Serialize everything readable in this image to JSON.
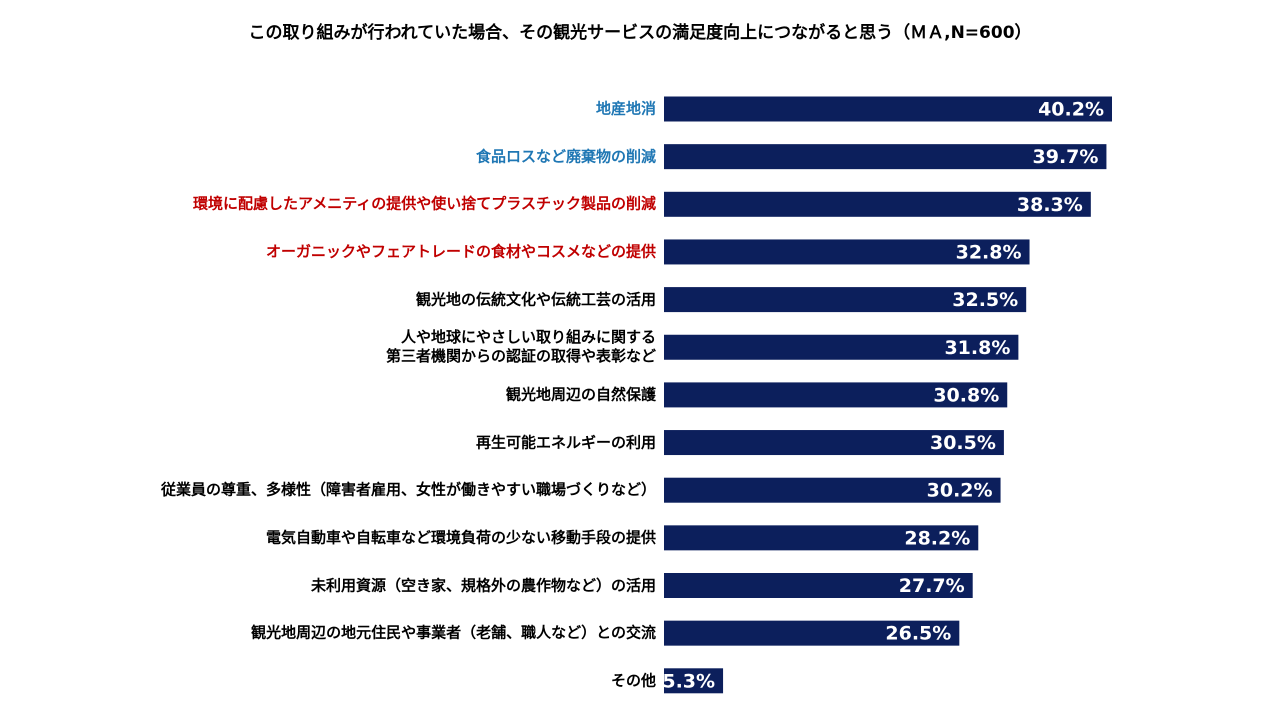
{
  "chart_data": {
    "type": "bar",
    "orientation": "horizontal",
    "title": "この取り組みが行われていた場合、その観光サービスの満足度向上につながると思う（ＭＡ,N=600）",
    "categories": [
      "地産地消",
      "食品ロスなど廃棄物の削減",
      "環境に配慮したアメニティの提供や使い捨てプラスチック製品の削減",
      "オーガニックやフェアトレードの食材やコスメなどの提供",
      "観光地の伝統文化や伝統工芸の活用",
      "人や地球にやさしい取り組みに関する\n第三者機関からの認証の取得や表彰など",
      "観光地周辺の自然保護",
      "再生可能エネルギーの利用",
      "従業員の尊重、多様性（障害者雇用、女性が働きやすい職場づくりなど）",
      "電気自動車や自転車など環境負荷の少ない移動手段の提供",
      "未利用資源（空き家、規格外の農作物など）の活用",
      "観光地周辺の地元住民や事業者（老舗、職人など）との交流",
      "その他"
    ],
    "category_colors": [
      "#1f77b4",
      "#1f77b4",
      "#c00000",
      "#c00000",
      "#000000",
      "#000000",
      "#000000",
      "#000000",
      "#000000",
      "#000000",
      "#000000",
      "#000000",
      "#000000"
    ],
    "values": [
      40.2,
      39.7,
      38.3,
      32.8,
      32.5,
      31.8,
      30.8,
      30.5,
      30.2,
      28.2,
      27.7,
      26.5,
      5.3
    ],
    "value_labels": [
      "40.2%",
      "39.7%",
      "38.3%",
      "32.8%",
      "32.5%",
      "31.8%",
      "30.8%",
      "30.5%",
      "30.2%",
      "28.2%",
      "27.7%",
      "26.5%",
      "5.3%"
    ],
    "color": "#0c1f5c"
  }
}
